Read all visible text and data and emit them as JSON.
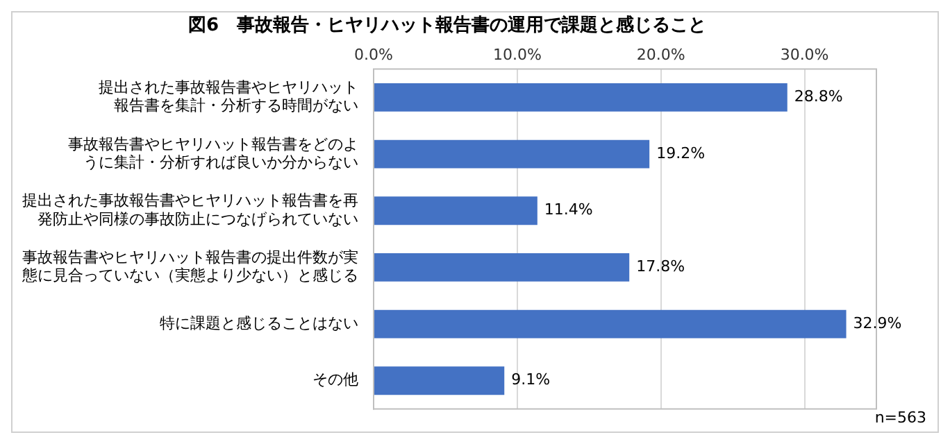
{
  "chart_data": {
    "type": "bar",
    "orientation": "horizontal",
    "title": "図6　事故報告・ヒヤリハット報告書の運用で課題と感じること",
    "categories": [
      "提出された事故報告書やヒヤリハット報告書を集計・分析する時間がない",
      "事故報告書やヒヤリハット報告書をどのように集計・分析すれば良いか分からない",
      "提出された事故報告書やヒヤリハット報告書を再発防止や同様の事故防止につなげられていない",
      "事故報告書やヒヤリハット報告書の提出件数が実態に見合っていない（実態より少ない）と感じる",
      "特に課題と感じることはない",
      "その他"
    ],
    "values": [
      28.8,
      19.2,
      11.4,
      17.8,
      32.9,
      9.1
    ],
    "value_labels": [
      "28.8%",
      "19.2%",
      "11.4%",
      "17.8%",
      "32.9%",
      "9.1%"
    ],
    "color": "#4472c4",
    "xlim": [
      0,
      35
    ],
    "xticks": [
      {
        "value": 0,
        "label": "0.0%"
      },
      {
        "value": 10,
        "label": "10.0%"
      },
      {
        "value": 20,
        "label": "20.0%"
      },
      {
        "value": 30,
        "label": "30.0%"
      }
    ],
    "grid": "x",
    "legend": false,
    "annotations": [
      "n=563"
    ]
  }
}
